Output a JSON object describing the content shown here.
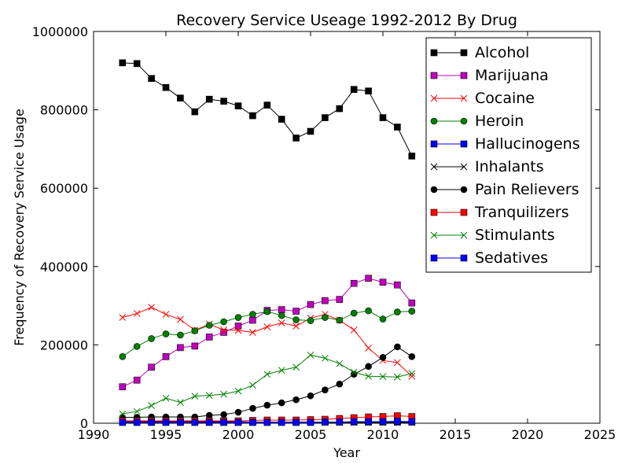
{
  "chart_data": {
    "type": "line",
    "title": "Recovery Service Useage 1992-2012 By Drug",
    "xlabel": "Year",
    "ylabel": "Frequency of Recovery Service Usage",
    "xlim": [
      1990,
      2025
    ],
    "ylim": [
      0,
      1000000
    ],
    "x_ticks": [
      1990,
      1995,
      2000,
      2005,
      2010,
      2015,
      2020,
      2025
    ],
    "y_ticks": [
      0,
      200000,
      400000,
      600000,
      800000,
      1000000
    ],
    "grid": false,
    "legend_position": "top-right",
    "x": [
      1992,
      1993,
      1994,
      1995,
      1996,
      1997,
      1998,
      1999,
      2000,
      2001,
      2002,
      2003,
      2004,
      2005,
      2006,
      2007,
      2008,
      2009,
      2010,
      2011,
      2012
    ],
    "series": [
      {
        "name": "Alcohol",
        "color": "#000000",
        "marker": "square",
        "values": [
          920000,
          918000,
          880000,
          857000,
          830000,
          795000,
          827000,
          822000,
          810000,
          785000,
          812000,
          776000,
          728000,
          745000,
          780000,
          803000,
          852000,
          848000,
          780000,
          756000,
          682000
        ]
      },
      {
        "name": "Marijuana",
        "color": "#bf00bf",
        "marker": "square",
        "values": [
          93000,
          110000,
          143000,
          170000,
          193000,
          197000,
          220000,
          232000,
          248000,
          263000,
          288000,
          290000,
          286000,
          303000,
          313000,
          316000,
          357000,
          370000,
          360000,
          353000,
          307000
        ]
      },
      {
        "name": "Cocaine",
        "color": "#ff0000",
        "marker": "x",
        "values": [
          270000,
          280000,
          296000,
          278000,
          265000,
          237000,
          253000,
          238000,
          237000,
          232000,
          246000,
          256000,
          248000,
          268000,
          278000,
          263000,
          238000,
          192000,
          160000,
          155000,
          120000
        ]
      },
      {
        "name": "Heroin",
        "color": "#008000",
        "marker": "circle",
        "values": [
          170000,
          196000,
          216000,
          228000,
          225000,
          236000,
          250000,
          259000,
          270000,
          278000,
          285000,
          275000,
          264000,
          262000,
          270000,
          263000,
          281000,
          287000,
          266000,
          284000,
          286000
        ]
      },
      {
        "name": "Hallucinogens",
        "color": "#0000ff",
        "marker": "square",
        "values": [
          5000,
          5000,
          5000,
          5000,
          4000,
          4000,
          5000,
          4000,
          4000,
          3000,
          3000,
          3000,
          3000,
          3000,
          3000,
          3000,
          3000,
          3000,
          3000,
          3000,
          3000
        ]
      },
      {
        "name": "Inhalants",
        "color": "#000000",
        "marker": "x",
        "values": [
          3000,
          3000,
          3000,
          3000,
          3000,
          3000,
          3000,
          3000,
          2000,
          2000,
          2000,
          2000,
          2000,
          2000,
          2000,
          2000,
          2000,
          2000,
          2000,
          2000,
          2000
        ]
      },
      {
        "name": "Pain Relievers",
        "color": "#000000",
        "marker": "circle",
        "values": [
          15000,
          15000,
          16000,
          16000,
          16000,
          16000,
          20000,
          22000,
          28000,
          38000,
          46000,
          52000,
          60000,
          70000,
          85000,
          100000,
          125000,
          145000,
          168000,
          195000,
          170000
        ]
      },
      {
        "name": "Tranquilizers",
        "color": "#ff0000",
        "marker": "square",
        "values": [
          6000,
          6000,
          6000,
          6000,
          6000,
          6000,
          6000,
          6000,
          6000,
          7000,
          8000,
          8000,
          8000,
          9000,
          10000,
          12000,
          14000,
          16000,
          17000,
          19000,
          17000
        ]
      },
      {
        "name": "Stimulants",
        "color": "#008000",
        "marker": "x",
        "values": [
          24000,
          30000,
          45000,
          64000,
          53000,
          69000,
          71000,
          74000,
          82000,
          97000,
          125000,
          135000,
          143000,
          174000,
          166000,
          152000,
          130000,
          120000,
          119000,
          118000,
          127000
        ]
      },
      {
        "name": "Sedatives",
        "color": "#0000ff",
        "marker": "square",
        "values": [
          2000,
          2000,
          2000,
          2000,
          2000,
          2000,
          2000,
          2000,
          2000,
          2000,
          2000,
          2000,
          2000,
          2000,
          3000,
          3000,
          4000,
          4000,
          4000,
          5000,
          4000
        ]
      }
    ]
  }
}
